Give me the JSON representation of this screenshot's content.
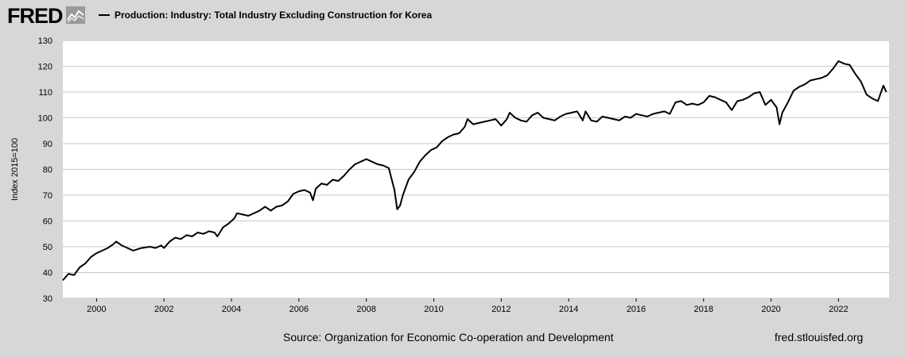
{
  "header": {
    "logo_text": "FRED",
    "series_title": "Production: Industry: Total Industry Excluding Construction for Korea"
  },
  "footer": {
    "source": "Source: Organization for Economic Co-operation and Development",
    "site": "fred.stlouisfed.org"
  },
  "colors": {
    "background": "#d7d7d7",
    "plot_background": "#ffffff",
    "line": "#000000",
    "grid": "#c8c8c8"
  },
  "chart_data": {
    "type": "line",
    "title": "Production: Industry: Total Industry Excluding Construction for Korea",
    "ylabel": "Index 2015=100",
    "xlabel": "",
    "xlim": [
      1999.0,
      2023.5
    ],
    "ylim": [
      30,
      130
    ],
    "x_ticks": [
      "2000",
      "2002",
      "2004",
      "2006",
      "2008",
      "2010",
      "2012",
      "2014",
      "2016",
      "2018",
      "2020",
      "2022"
    ],
    "y_ticks": [
      "30",
      "40",
      "50",
      "60",
      "70",
      "80",
      "90",
      "100",
      "110",
      "120",
      "130"
    ],
    "grid": "horizontal",
    "legend": "top-left",
    "series": [
      {
        "name": "Production: Industry: Total Industry Excluding Construction for Korea",
        "color": "#000000",
        "points": [
          [
            "1999-01",
            37
          ],
          [
            "1999-03",
            39.5
          ],
          [
            "1999-05",
            39
          ],
          [
            "1999-07",
            42
          ],
          [
            "1999-09",
            43.5
          ],
          [
            "1999-11",
            46
          ],
          [
            "2000-01",
            47.5
          ],
          [
            "2000-03",
            48.5
          ],
          [
            "2000-05",
            49.5
          ],
          [
            "2000-07",
            51
          ],
          [
            "2000-08",
            52
          ],
          [
            "2000-10",
            50.5
          ],
          [
            "2000-12",
            49.5
          ],
          [
            "2001-02",
            48.5
          ],
          [
            "2001-05",
            49.5
          ],
          [
            "2001-08",
            50
          ],
          [
            "2001-10",
            49.5
          ],
          [
            "2001-12",
            50.5
          ],
          [
            "2002-01",
            49.5
          ],
          [
            "2002-03",
            52
          ],
          [
            "2002-05",
            53.5
          ],
          [
            "2002-07",
            53
          ],
          [
            "2002-09",
            54.5
          ],
          [
            "2002-11",
            54
          ],
          [
            "2003-01",
            55.5
          ],
          [
            "2003-03",
            55
          ],
          [
            "2003-05",
            56
          ],
          [
            "2003-07",
            55.5
          ],
          [
            "2003-08",
            54
          ],
          [
            "2003-10",
            57.5
          ],
          [
            "2003-12",
            59
          ],
          [
            "2004-02",
            61
          ],
          [
            "2004-03",
            63
          ],
          [
            "2004-05",
            62.5
          ],
          [
            "2004-07",
            62
          ],
          [
            "2004-09",
            63
          ],
          [
            "2004-11",
            64
          ],
          [
            "2005-01",
            65.5
          ],
          [
            "2005-03",
            64
          ],
          [
            "2005-05",
            65.5
          ],
          [
            "2005-07",
            66
          ],
          [
            "2005-09",
            67.5
          ],
          [
            "2005-11",
            70.5
          ],
          [
            "2006-01",
            71.5
          ],
          [
            "2006-03",
            72
          ],
          [
            "2006-05",
            71
          ],
          [
            "2006-06",
            68
          ],
          [
            "2006-07",
            72.5
          ],
          [
            "2006-09",
            74.5
          ],
          [
            "2006-11",
            74
          ],
          [
            "2007-01",
            76
          ],
          [
            "2007-03",
            75.5
          ],
          [
            "2007-05",
            77.5
          ],
          [
            "2007-07",
            80
          ],
          [
            "2007-09",
            82
          ],
          [
            "2007-11",
            83
          ],
          [
            "2008-01",
            84
          ],
          [
            "2008-03",
            83
          ],
          [
            "2008-05",
            82
          ],
          [
            "2008-07",
            81.5
          ],
          [
            "2008-09",
            80.5
          ],
          [
            "2008-11",
            72
          ],
          [
            "2008-12",
            64.5
          ],
          [
            "2009-01",
            66
          ],
          [
            "2009-02",
            70
          ],
          [
            "2009-04",
            76
          ],
          [
            "2009-06",
            79
          ],
          [
            "2009-08",
            83
          ],
          [
            "2009-10",
            85.5
          ],
          [
            "2009-12",
            87.5
          ],
          [
            "2010-02",
            88.5
          ],
          [
            "2010-04",
            91
          ],
          [
            "2010-06",
            92.5
          ],
          [
            "2010-08",
            93.5
          ],
          [
            "2010-10",
            94
          ],
          [
            "2010-12",
            96.5
          ],
          [
            "2011-01",
            99.5
          ],
          [
            "2011-03",
            97.5
          ],
          [
            "2011-05",
            98
          ],
          [
            "2011-07",
            98.5
          ],
          [
            "2011-09",
            99
          ],
          [
            "2011-11",
            99.5
          ],
          [
            "2012-01",
            97
          ],
          [
            "2012-03",
            99.5
          ],
          [
            "2012-04",
            102
          ],
          [
            "2012-06",
            100
          ],
          [
            "2012-08",
            99
          ],
          [
            "2012-10",
            98.5
          ],
          [
            "2012-12",
            101
          ],
          [
            "2013-02",
            102
          ],
          [
            "2013-04",
            100
          ],
          [
            "2013-06",
            99.5
          ],
          [
            "2013-08",
            99
          ],
          [
            "2013-10",
            100.5
          ],
          [
            "2013-12",
            101.5
          ],
          [
            "2014-02",
            102
          ],
          [
            "2014-04",
            102.5
          ],
          [
            "2014-06",
            99
          ],
          [
            "2014-07",
            102.5
          ],
          [
            "2014-09",
            99
          ],
          [
            "2014-11",
            98.5
          ],
          [
            "2015-01",
            100.5
          ],
          [
            "2015-03",
            100
          ],
          [
            "2015-05",
            99.5
          ],
          [
            "2015-07",
            99
          ],
          [
            "2015-09",
            100.5
          ],
          [
            "2015-11",
            100
          ],
          [
            "2016-01",
            101.5
          ],
          [
            "2016-03",
            101
          ],
          [
            "2016-05",
            100.5
          ],
          [
            "2016-07",
            101.5
          ],
          [
            "2016-09",
            102
          ],
          [
            "2016-11",
            102.5
          ],
          [
            "2017-01",
            101.5
          ],
          [
            "2017-03",
            106
          ],
          [
            "2017-05",
            106.5
          ],
          [
            "2017-07",
            105
          ],
          [
            "2017-09",
            105.5
          ],
          [
            "2017-11",
            105
          ],
          [
            "2018-01",
            106
          ],
          [
            "2018-03",
            108.5
          ],
          [
            "2018-05",
            108
          ],
          [
            "2018-07",
            107
          ],
          [
            "2018-09",
            106
          ],
          [
            "2018-11",
            103
          ],
          [
            "2019-01",
            106.5
          ],
          [
            "2019-03",
            107
          ],
          [
            "2019-05",
            108
          ],
          [
            "2019-07",
            109.5
          ],
          [
            "2019-09",
            110
          ],
          [
            "2019-11",
            105
          ],
          [
            "2020-01",
            107
          ],
          [
            "2020-03",
            104
          ],
          [
            "2020-04",
            97.5
          ],
          [
            "2020-05",
            102
          ],
          [
            "2020-07",
            106
          ],
          [
            "2020-09",
            110.5
          ],
          [
            "2020-11",
            112
          ],
          [
            "2021-01",
            113
          ],
          [
            "2021-03",
            114.5
          ],
          [
            "2021-05",
            115
          ],
          [
            "2021-07",
            115.5
          ],
          [
            "2021-09",
            116.5
          ],
          [
            "2021-11",
            119
          ],
          [
            "2022-01",
            122
          ],
          [
            "2022-03",
            121
          ],
          [
            "2022-05",
            120.5
          ],
          [
            "2022-07",
            117
          ],
          [
            "2022-09",
            114
          ],
          [
            "2022-11",
            109
          ],
          [
            "2023-01",
            107.5
          ],
          [
            "2023-03",
            106.5
          ],
          [
            "2023-05",
            112.5
          ],
          [
            "2023-06",
            110
          ]
        ]
      }
    ]
  }
}
